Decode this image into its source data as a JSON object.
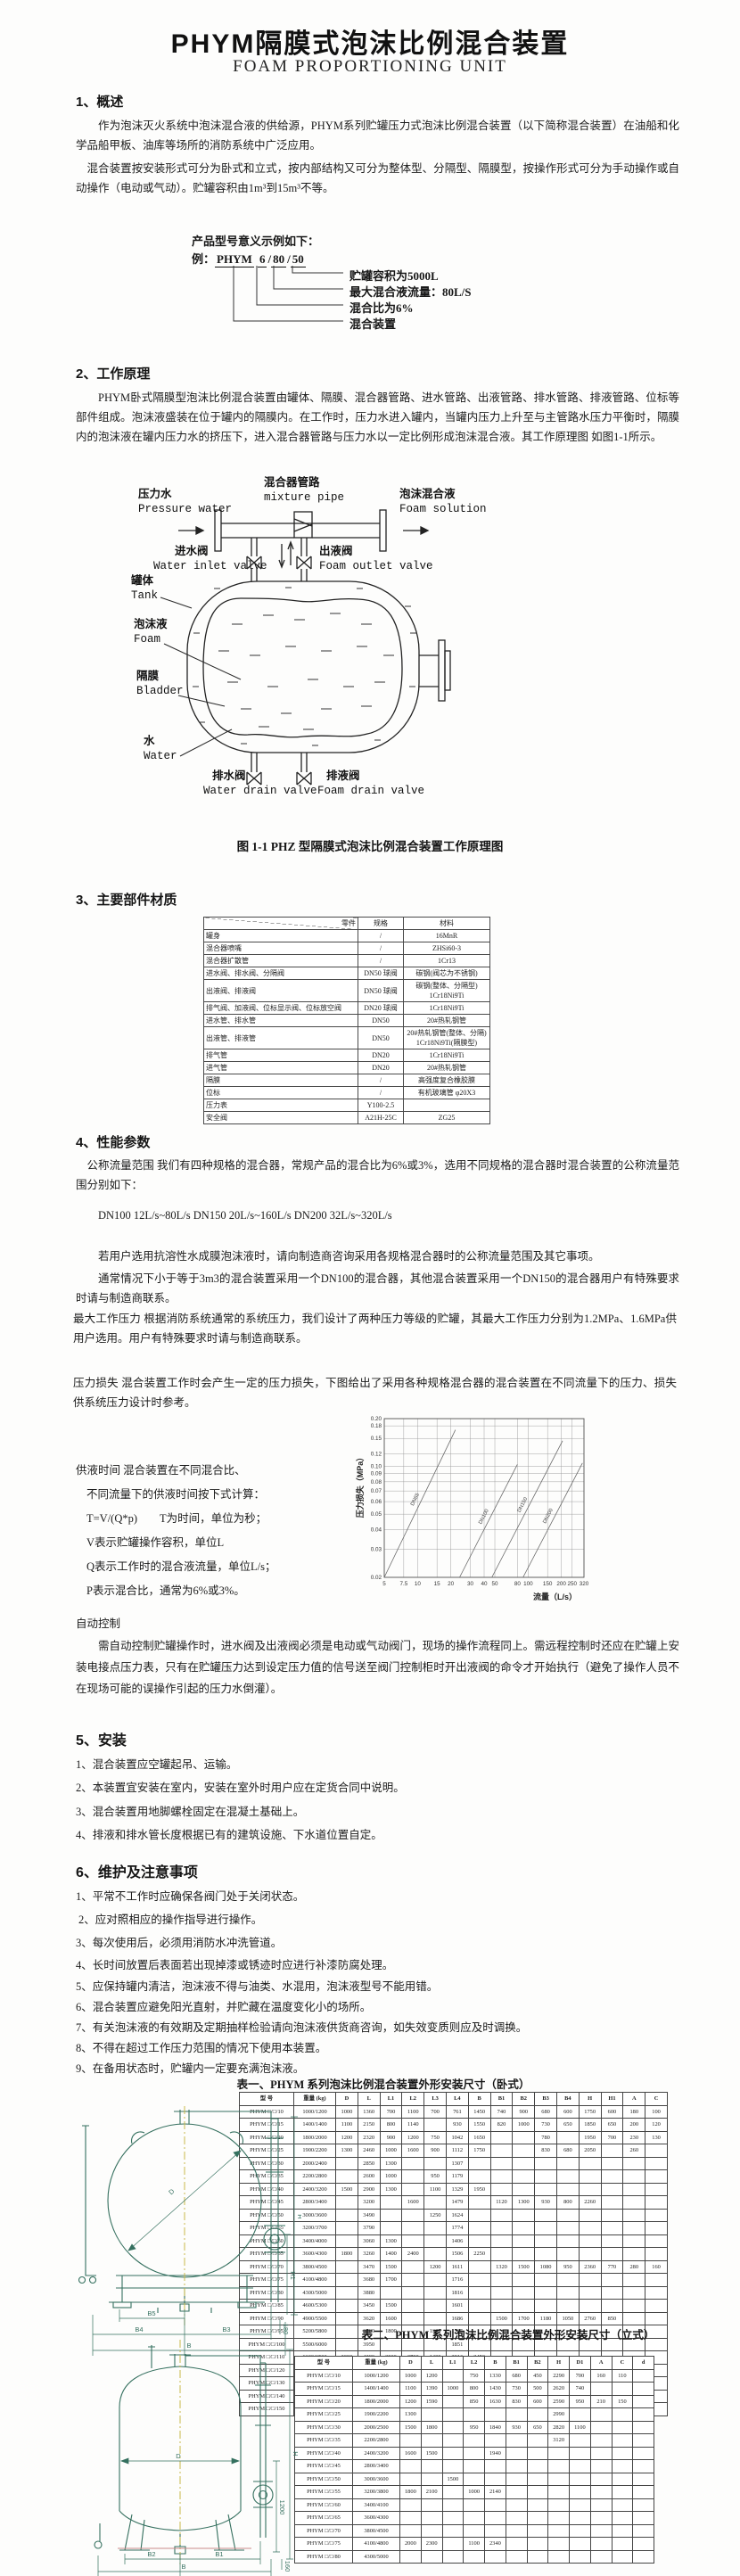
{
  "page": {
    "title": "PHYM隔膜式泡沫比例混合装置",
    "subtitle": "FOAM PROPORTIONING UNIT"
  },
  "section1": {
    "heading": "1、概述",
    "para1": "作为泡沫灭火系统中泡沫混合液的供给源，PHYM系列贮罐压力式泡沫比例混合装置（以下简称混合装置）在油船和化学品船甲板、油库等场所的消防系统中广泛应用。",
    "para2": "混合装置按安装形式可分为卧式和立式，按内部结构又可分为整体型、分隔型、隔膜型，按操作形式可分为手动操作或自动操作（电动或气动）。贮罐容积由1m³到15m³不等。"
  },
  "model_example": {
    "intro": "产品型号意义示例如下：",
    "prefix": "例：",
    "parts": [
      "PHYM",
      "6",
      "80",
      "50"
    ],
    "sep": "/",
    "callouts": [
      "贮罐容积为5000L",
      "最大混合液流量：80L/S",
      "混合比为6%",
      "混合装置"
    ]
  },
  "section2": {
    "heading": "2、工作原理",
    "para": "PHYM卧式隔膜型泡沫比例混合装置由罐体、隔膜、混合器管路、进水管路、出液管路、排水管路、排液管路、位标等部件组成。泡沫液盛装在位于罐内的隔膜内。在工作时，压力水进入罐内，当罐内压力上升至与主管路水压力平衡时，隔膜内的泡沫液在罐内压力水的挤压下，进入混合器管路与压力水以一定比例形成泡沫混合液。其工作原理图 如图1-1所示。",
    "figure": {
      "pressure_water_cn": "压力水",
      "pressure_water_en": "Pressure water",
      "mixture_pipe_cn": "混合器管路",
      "mixture_pipe_en": "mixture pipe",
      "foam_solution_cn": "泡沫混合液",
      "foam_solution_en": "Foam solution",
      "water_inlet_valve_cn": "进水阀",
      "water_inlet_valve_en": "Water inlet valve",
      "foam_outlet_valve_cn": "出液阀",
      "foam_outlet_valve_en": "Foam outlet valve",
      "tank_cn": "罐体",
      "tank_en": "Tank",
      "foam_cn": "泡沫液",
      "foam_en": "Foam",
      "bladder_cn": "隔膜",
      "bladder_en": "Bladder",
      "water_cn": "水",
      "water_en": "Water",
      "water_drain_valve_cn": "排水阀",
      "water_drain_valve_en": "Water drain valve",
      "foam_drain_valve_cn": "排液阀",
      "foam_drain_valve_en": "Foam drain valve",
      "caption": "图 1-1 PHZ 型隔膜式泡沫比例混合装置工作原理图"
    }
  },
  "section3": {
    "heading": "3、主要部件材质",
    "table": {
      "headers": [
        "零件",
        "规格",
        "材料"
      ],
      "rows": [
        [
          "罐身",
          "/",
          "16MnR"
        ],
        [
          "混合器喷嘴",
          "/",
          "ZHSi60-3"
        ],
        [
          "混合器扩散管",
          "/",
          "1Cr13"
        ],
        [
          "进水阀、排水阀、分隔阀",
          "DN50 球阀",
          "碳钢(阀芯为不锈钢)"
        ],
        [
          "出液阀、排液阀",
          "DN50 球阀",
          "碳钢(整体、分隔型)\n1Cr18Ni9Ti"
        ],
        [
          "排气阀、加液阀、位标显示阀、位标放空阀",
          "DN20 球阀",
          "1Cr18Ni9Ti"
        ],
        [
          "进水管、排水管",
          "DN50",
          "20#热轧钢管"
        ],
        [
          "出液管、排液管",
          "DN50",
          "20#热轧钢管(整体、分隔)\n1Cr18Ni9Ti(隔膜型)"
        ],
        [
          "排气管",
          "DN20",
          "1Cr18Ni9Ti"
        ],
        [
          "进气管",
          "DN20",
          "20#热轧钢管"
        ],
        [
          "隔膜",
          "/",
          "高强度复合橡胶膜"
        ],
        [
          "位标",
          "/",
          "有机玻璃管 φ20X3"
        ],
        [
          "压力表",
          "Y100-2.5",
          ""
        ],
        [
          "安全阀",
          "A21H-25C",
          "ZG25"
        ]
      ]
    }
  },
  "section4": {
    "heading": "4、性能参数",
    "para_flow": "公称流量范围  我们有四种规格的混合器，常规产品的混合比为6%或3%，选用不同规格的混合器时混合装置的公称流量范围分别如下：",
    "flow_specs": "DN100  12L/s~80L/s    DN150  20L/s~160L/s    DN200  32L/s~320L/s",
    "para_note": "若用户选用抗溶性水成膜泡沫液时，请向制造商咨询采用各规格混合器时的公称流量范围及其它事项。",
    "para_mixer": "通常情况下小于等于3m3的混合装置采用一个DN100的混合器，其他混合装置采用一个DN150的混合器用户有特殊要求时请与制造商联系。",
    "para_pressure": "最大工作压力  根据消防系统通常的系统压力，我们设计了两种压力等级的贮罐，其最大工作压力分别为1.2MPa、1.6MPa供用户选用。用户有特殊要求时请与制造商联系。",
    "para_loss": "压力损失  混合装置工作时会产生一定的压力损失，下图给出了采用各种规格混合器的混合装置在不同流量下的压力、损失供系统压力设计时参考。",
    "supply_time": [
      "供液时间  混合装置在不同混合比、",
      "不同流量下的供液时间按下式计算：",
      "T=V/(Q*p)　　T为时间，单位为秒；",
      "V表示贮罐操作容积，单位L",
      "Q表示工作时的混合液流量，单位L/s；",
      "P表示混合比，通常为6%或3%。"
    ],
    "auto_heading": "自动控制",
    "auto_para": "需自动控制贮罐操作时，进水阀及出液阀必须是电动或气动阀门，现场的操作流程同上。需远程控制时还应在贮罐上安装电接点压力表，只有在贮罐压力达到设定压力值的信号送至阀门控制柜时开出液阀的命令才开始执行（避免了操作人员不在现场可能的误操作引起的压力水倒灌）。"
  },
  "chart_data": {
    "type": "line",
    "title": "",
    "xlabel": "流量（L/s）",
    "ylabel": "压力损失（MPa）",
    "x_scale": "log",
    "y_scale": "log",
    "xlim": [
      5,
      320
    ],
    "ylim": [
      0.02,
      0.2
    ],
    "grid": true,
    "x_ticks": [
      5,
      7.5,
      10,
      15,
      20,
      30,
      40,
      50,
      80,
      100,
      150,
      200,
      250,
      320
    ],
    "y_ticks": [
      0.02,
      0.03,
      0.04,
      0.05,
      0.06,
      0.07,
      0.08,
      0.09,
      0.1,
      0.12,
      0.15,
      0.18,
      0.2
    ],
    "series": [
      {
        "name": "DN65",
        "points": [
          [
            5,
            0.02
          ],
          [
            22,
            0.17
          ]
        ]
      },
      {
        "name": "DN100",
        "points": [
          [
            24,
            0.02
          ],
          [
            80,
            0.103
          ]
        ]
      },
      {
        "name": "DN150",
        "points": [
          [
            47,
            0.02
          ],
          [
            205,
            0.145
          ]
        ]
      },
      {
        "name": "DN200",
        "points": [
          [
            90,
            0.02
          ],
          [
            310,
            0.105
          ]
        ]
      }
    ]
  },
  "section5": {
    "heading": "5、安装",
    "items": [
      "1、混合装置应空罐起吊、运输。",
      "2、本装置宜安装在室内，安装在室外时用户应在定货合同中说明。",
      "3、混合装置用地脚螺栓固定在混凝土基础上。",
      "4、排液和排水管长度根据已有的建筑设施、下水道位置自定。"
    ]
  },
  "section6": {
    "heading": "6、维护及注意事项",
    "items": [
      "1、平常不工作时应确保各阀门处于关闭状态。",
      "2、应对照相应的操作指导进行操作。",
      "3、每次使用后，必须用消防水冲洗管道。",
      "4、长时间放置后表面若出现掉漆或锈迹时应进行补漆防腐处理。",
      "5、应保持罐内清洁，泡沫液不得与油类、水混用，泡沫液型号不能用错。",
      "6、混合装置应避免阳光直射，并贮藏在温度变化小的场所。",
      "7、有关泡沫液的有效期及定期抽样检验请向泡沫液供货商咨询，如失效变质则应及时调换。",
      "8、不得在超过工作压力范围的情况下使用本装置。",
      "9、在备用状态时，贮罐内一定要充满泡沫液。"
    ]
  },
  "table1": {
    "title": "表一、PHYM 系列泡沫比例混合装置外形安装尺寸（卧式）",
    "headers": [
      "型 号",
      "重量 (kg)",
      "D",
      "L",
      "L1",
      "L2",
      "L3",
      "L4",
      "B",
      "B1",
      "B2",
      "B3",
      "B4",
      "H",
      "H1",
      "A",
      "C"
    ],
    "rows": [
      [
        "PHYM □/□/10",
        "1000/1200",
        "1000",
        "1360",
        "700",
        "1100",
        "700",
        "761",
        "1450",
        "740",
        "900",
        "680",
        "600",
        "1750",
        "600",
        "180",
        "100"
      ],
      [
        "PHYM □/□/15",
        "1400/1400",
        "1100",
        "2150",
        "800",
        "1140",
        "",
        "930",
        "1550",
        "820",
        "1000",
        "730",
        "650",
        "1850",
        "650",
        "200",
        "120"
      ],
      [
        "PHYM □/□/20",
        "1800/2000",
        "1200",
        "2320",
        "900",
        "1200",
        "750",
        "1042",
        "1650",
        "",
        "",
        "780",
        "",
        "1950",
        "700",
        "230",
        "130"
      ],
      [
        "PHYM □/□/25",
        "1900/2200",
        "1300",
        "2460",
        "1000",
        "1600",
        "900",
        "1112",
        "1750",
        "",
        "",
        "830",
        "680",
        "2050",
        "",
        "260",
        ""
      ],
      [
        "PHYM □/□/30",
        "2000/2400",
        "",
        "2850",
        "1300",
        "",
        "",
        "1307",
        "",
        "",
        "",
        "",
        "",
        "",
        "",
        "",
        ""
      ],
      [
        "PHYM □/□/35",
        "2200/2800",
        "",
        "2600",
        "1000",
        "",
        "950",
        "1179",
        "",
        "",
        "",
        "",
        "",
        "",
        "",
        "",
        ""
      ],
      [
        "PHYM □/□/40",
        "2400/3200",
        "1500",
        "2900",
        "1300",
        "",
        "1100",
        "1329",
        "1950",
        "",
        "",
        "",
        "",
        "",
        "",
        "",
        ""
      ],
      [
        "PHYM □/□/45",
        "2800/3400",
        "",
        "3200",
        "",
        "1600",
        "",
        "1479",
        "",
        "1120",
        "1300",
        "930",
        "800",
        "2260",
        "",
        "",
        ""
      ],
      [
        "PHYM □/□/50",
        "3000/3600",
        "",
        "3490",
        "",
        "",
        "1250",
        "1624",
        "",
        "",
        "",
        "",
        "",
        "",
        "",
        "",
        ""
      ],
      [
        "PHYM □/□/55",
        "3200/3700",
        "",
        "3790",
        "",
        "",
        "",
        "1774",
        "",
        "",
        "",
        "",
        "",
        "",
        "",
        "",
        ""
      ],
      [
        "PHYM □/□/60",
        "3400/4000",
        "",
        "3060",
        "1300",
        "",
        "",
        "1406",
        "",
        "",
        "",
        "",
        "",
        "",
        "",
        "",
        ""
      ],
      [
        "PHYM □/□/65",
        "3600/4300",
        "1800",
        "3260",
        "1400",
        "2400",
        "",
        "1506",
        "2250",
        "",
        "",
        "",
        "",
        "",
        "",
        "",
        ""
      ],
      [
        "PHYM □/□/70",
        "3800/4500",
        "",
        "3470",
        "1500",
        "",
        "1200",
        "1611",
        "",
        "1320",
        "1500",
        "1080",
        "950",
        "2360",
        "770",
        "280",
        "160"
      ],
      [
        "PHYM □/□/75",
        "4100/4800",
        "",
        "3680",
        "1700",
        "",
        "",
        "1716",
        "",
        "",
        "",
        "",
        "",
        "",
        "",
        "",
        ""
      ],
      [
        "PHYM □/□/80",
        "4300/5000",
        "",
        "3880",
        "",
        "",
        "",
        "1816",
        "",
        "",
        "",
        "",
        "",
        "",
        "",
        "",
        ""
      ],
      [
        "PHYM □/□/85",
        "4600/5300",
        "",
        "3450",
        "1500",
        "",
        "",
        "1601",
        "",
        "",
        "",
        "",
        "",
        "",
        "",
        "",
        ""
      ],
      [
        "PHYM □/□/90",
        "4900/5500",
        "",
        "3620",
        "1600",
        "",
        "",
        "1686",
        "",
        "1500",
        "1700",
        "1180",
        "1050",
        "2760",
        "850",
        "",
        ""
      ],
      [
        "PHYM □/□/95",
        "5200/5800",
        "",
        "3780",
        "1800",
        "",
        "1300",
        "1765",
        "",
        "",
        "",
        "",
        "",
        "",
        "",
        "",
        ""
      ],
      [
        "PHYM □/□/100",
        "5500/6000",
        "",
        "3950",
        "",
        "",
        "",
        "1851",
        "",
        "",
        "",
        "",
        "",
        "",
        "",
        "",
        ""
      ],
      [
        "PHYM □/□/110",
        "6100/6500",
        "2000",
        "4280",
        "2000",
        "2700",
        "1400",
        "2016",
        "2450",
        "",
        "",
        "",
        "",
        "",
        "",
        "",
        ""
      ],
      [
        "PHYM □/□/120",
        "6300/6800",
        "",
        "4620",
        "",
        "3000",
        "",
        "2185",
        "",
        "",
        "",
        "",
        "",
        "",
        "",
        "",
        ""
      ],
      [
        "PHYM □/□/130",
        "6500/7100",
        "",
        "4960",
        "2300",
        "3200",
        "1650",
        "2356",
        "",
        "",
        "",
        "",
        "",
        "",
        "",
        "",
        ""
      ],
      [
        "PHYM □/□/140",
        "6700/7400",
        "",
        "5200",
        "2500",
        "",
        "",
        "2521",
        "",
        "",
        "",
        "",
        "",
        "",
        "",
        "",
        ""
      ],
      [
        "PHYM □/□/150",
        "6800/7500",
        "",
        "5620",
        "3000",
        "3600",
        "1900",
        "2686",
        "",
        "",
        "",
        "",
        "",
        "",
        "",
        "",
        ""
      ]
    ]
  },
  "drawing1": {
    "dims": [
      "D",
      "B5",
      "B4",
      "B3",
      "B",
      "H",
      "H1",
      "180"
    ]
  },
  "table2": {
    "title": "表二、PHYM 系列泡沫比例混合装置外形安装尺寸（立式）",
    "headers": [
      "型 号",
      "重量 (kg)",
      "D",
      "L",
      "L1",
      "L2",
      "B",
      "B1",
      "B2",
      "H",
      "D1",
      "A",
      "C",
      "d"
    ],
    "rows": [
      [
        "PHYM □/□/10",
        "1000/1200",
        "1000",
        "1200",
        "",
        "750",
        "1330",
        "680",
        "450",
        "2290",
        "700",
        "160",
        "110",
        ""
      ],
      [
        "PHYM □/□/15",
        "1400/1400",
        "1100",
        "1390",
        "1000",
        "800",
        "1430",
        "730",
        "500",
        "2620",
        "740",
        "",
        "",
        ""
      ],
      [
        "PHYM □/□/20",
        "1800/2000",
        "1200",
        "1590",
        "",
        "850",
        "1630",
        "830",
        "600",
        "2590",
        "950",
        "210",
        "150",
        ""
      ],
      [
        "PHYM □/□/25",
        "1900/2200",
        "1300",
        "",
        "",
        "",
        "",
        "",
        "",
        "2990",
        "",
        "",
        "",
        ""
      ],
      [
        "PHYM □/□/30",
        "2000/2500",
        "1500",
        "1800",
        "",
        "950",
        "1840",
        "930",
        "650",
        "2820",
        "1100",
        "",
        "",
        ""
      ],
      [
        "PHYM □/□/35",
        "2200/2800",
        "",
        "",
        "",
        "",
        "",
        "",
        "",
        "3120",
        "",
        "",
        "",
        ""
      ],
      [
        "PHYM □/□/40",
        "2400/3200",
        "1600",
        "1500",
        "",
        "",
        "1940",
        "",
        "",
        "",
        "",
        "",
        "",
        ""
      ],
      [
        "PHYM □/□/45",
        "2800/3400",
        "",
        "",
        "",
        "",
        "",
        "",
        "",
        "",
        "",
        "",
        "",
        ""
      ],
      [
        "PHYM □/□/50",
        "3000/3600",
        "",
        "",
        "1500",
        "",
        "",
        "",
        "",
        "",
        "",
        "",
        "",
        ""
      ],
      [
        "PHYM □/□/55",
        "3200/3800",
        "1800",
        "2100",
        "",
        "1000",
        "2140",
        "",
        "",
        "",
        "",
        "",
        "",
        ""
      ],
      [
        "PHYM □/□/60",
        "3400/4100",
        "",
        "",
        "",
        "",
        "",
        "",
        "",
        "",
        "",
        "",
        "",
        ""
      ],
      [
        "PHYM □/□/65",
        "3600/4300",
        "",
        "",
        "",
        "",
        "",
        "",
        "",
        "",
        "",
        "",
        "",
        ""
      ],
      [
        "PHYM □/□/70",
        "3800/4500",
        "",
        "",
        "",
        "",
        "",
        "",
        "",
        "",
        "",
        "",
        "",
        ""
      ],
      [
        "PHYM □/□/75",
        "4100/4800",
        "2000",
        "2300",
        "",
        "1100",
        "2340",
        "",
        "",
        "",
        "",
        "",
        "",
        ""
      ],
      [
        "PHYM □/□/80",
        "4300/5000",
        "",
        "",
        "",
        "",
        "",
        "",
        "",
        "",
        "",
        "",
        "",
        ""
      ]
    ]
  },
  "drawing2": {
    "dims": [
      "D",
      "B2",
      "B1",
      "B",
      "H",
      "1200",
      "160"
    ]
  }
}
